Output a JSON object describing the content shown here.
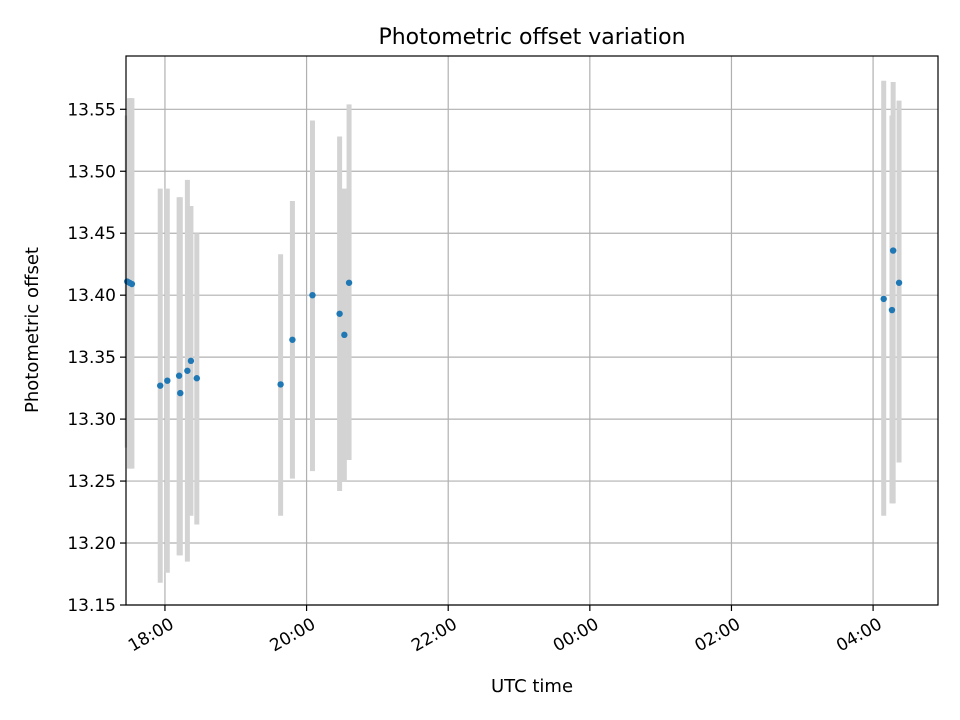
{
  "chart_data": {
    "type": "scatter",
    "title": "Photometric offset variation",
    "xlabel": "UTC time",
    "ylabel": "Photometric offset",
    "grid": true,
    "legend": "none",
    "x_tick_labels": [
      "18:00",
      "20:00",
      "22:00",
      "00:00",
      "02:00",
      "04:00"
    ],
    "y_tick_labels": [
      "13.15",
      "13.20",
      "13.25",
      "13.30",
      "13.35",
      "13.40",
      "13.45",
      "13.50",
      "13.55"
    ],
    "xlim": [
      "17:27",
      "04:55"
    ],
    "ylim": [
      13.15,
      13.593
    ],
    "colors": {
      "point": "#1f77b4",
      "errorbar": "#d3d3d3",
      "grid": "#b0b0b0"
    },
    "points": [
      {
        "x": "17:28",
        "y": 13.411,
        "yerr": [
          13.277,
          13.545
        ]
      },
      {
        "x": "17:30",
        "y": 13.41,
        "yerr": [
          13.26,
          13.559
        ]
      },
      {
        "x": "17:32",
        "y": 13.409,
        "yerr": [
          13.26,
          13.559
        ]
      },
      {
        "x": "17:56",
        "y": 13.327,
        "yerr": [
          13.168,
          13.486
        ]
      },
      {
        "x": "18:02",
        "y": 13.331,
        "yerr": [
          13.176,
          13.486
        ]
      },
      {
        "x": "18:12",
        "y": 13.335,
        "yerr": [
          13.19,
          13.479
        ]
      },
      {
        "x": "18:13",
        "y": 13.321,
        "yerr": [
          13.19,
          13.479
        ]
      },
      {
        "x": "18:19",
        "y": 13.339,
        "yerr": [
          13.185,
          13.493
        ]
      },
      {
        "x": "18:22",
        "y": 13.347,
        "yerr": [
          13.222,
          13.472
        ]
      },
      {
        "x": "18:27",
        "y": 13.333,
        "yerr": [
          13.215,
          13.45
        ]
      },
      {
        "x": "19:38",
        "y": 13.328,
        "yerr": [
          13.222,
          13.433
        ]
      },
      {
        "x": "19:48",
        "y": 13.364,
        "yerr": [
          13.252,
          13.476
        ]
      },
      {
        "x": "20:05",
        "y": 13.4,
        "yerr": [
          13.258,
          13.541
        ]
      },
      {
        "x": "20:28",
        "y": 13.385,
        "yerr": [
          13.242,
          13.528
        ]
      },
      {
        "x": "20:32",
        "y": 13.368,
        "yerr": [
          13.25,
          13.486
        ]
      },
      {
        "x": "20:36",
        "y": 13.41,
        "yerr": [
          13.267,
          13.554
        ]
      },
      {
        "x": "04:09",
        "y": 13.397,
        "yerr": [
          13.222,
          13.573
        ]
      },
      {
        "x": "04:16",
        "y": 13.388,
        "yerr": [
          13.232,
          13.545
        ]
      },
      {
        "x": "04:17",
        "y": 13.436,
        "yerr": [
          13.232,
          13.572
        ]
      },
      {
        "x": "04:22",
        "y": 13.41,
        "yerr": [
          13.265,
          13.557
        ]
      }
    ]
  }
}
